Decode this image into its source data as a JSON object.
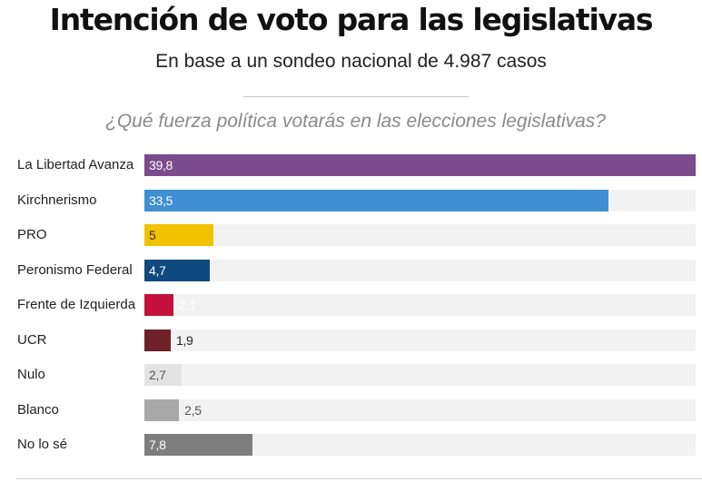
{
  "chart_data": {
    "type": "bar",
    "orientation": "horizontal",
    "title": "Intención de voto para las legislativas",
    "subtitle": "En base a un sondeo nacional de 4.987 casos",
    "question": "¿Qué fuerza política votarás en las elecciones legislativas?",
    "categories": [
      "La Libertad Avanza",
      "Kirchnerismo",
      "PRO",
      "Peronismo Federal",
      "Frente de Izquierda",
      "UCR",
      "Nulo",
      "Blanco",
      "No lo sé"
    ],
    "values": [
      39.8,
      33.5,
      5,
      4.7,
      2.1,
      1.9,
      2.7,
      2.5,
      7.8
    ],
    "value_labels": [
      "39,8",
      "33,5",
      "5",
      "4,7",
      "2,1",
      "1,9",
      "2,7",
      "2,5",
      "7,8"
    ],
    "colors": [
      "#7b4b8e",
      "#3f8fd2",
      "#f2c200",
      "#0f4a7e",
      "#c4113c",
      "#6e2129",
      "#e3e3e3",
      "#a8a8a8",
      "#7e7e7e"
    ],
    "label_colors": [
      "#ffffff",
      "#ffffff",
      "#333333",
      "#ffffff",
      "#ffffff",
      "#222222",
      "#555555",
      "#555555",
      "#ffffff"
    ],
    "xlim": [
      0,
      39.8
    ],
    "track_color": "#f2f2f2",
    "grid": false,
    "legend": "none"
  }
}
